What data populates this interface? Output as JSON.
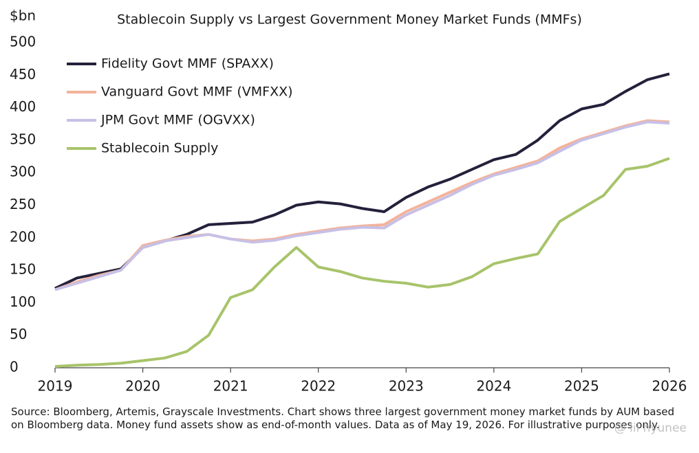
{
  "chart_data": {
    "type": "line",
    "title": "Stablecoin Supply vs Largest Government Money Market Funds (MMFs)",
    "y_label": "$bn",
    "x": [
      2019,
      2019.25,
      2019.5,
      2019.75,
      2020,
      2020.25,
      2020.5,
      2020.75,
      2021,
      2021.25,
      2021.5,
      2021.75,
      2022,
      2022.25,
      2022.5,
      2022.75,
      2023,
      2023.25,
      2023.5,
      2023.75,
      2024,
      2024.25,
      2024.5,
      2024.75,
      2025,
      2025.25,
      2025.5,
      2025.75,
      2026
    ],
    "series": [
      {
        "name": "Fidelity Govt MMF (SPAXX)",
        "color": "#23213a",
        "values": [
          122,
          138,
          145,
          152,
          185,
          195,
          205,
          220,
          222,
          224,
          235,
          250,
          255,
          252,
          245,
          240,
          262,
          278,
          290,
          305,
          320,
          328,
          350,
          380,
          398,
          405,
          425,
          443,
          452
        ]
      },
      {
        "name": "Vanguard Govt MMF (VMFXX)",
        "color": "#f4b39a",
        "values": [
          120,
          132,
          142,
          150,
          188,
          196,
          202,
          205,
          198,
          195,
          198,
          205,
          210,
          215,
          218,
          220,
          240,
          255,
          270,
          285,
          298,
          308,
          318,
          338,
          352,
          362,
          372,
          380,
          378
        ]
      },
      {
        "name": "JPM Govt MMF (OGVXX)",
        "color": "#c7c0e6",
        "values": [
          120,
          130,
          140,
          150,
          185,
          195,
          200,
          205,
          198,
          193,
          196,
          203,
          208,
          213,
          216,
          215,
          235,
          250,
          265,
          282,
          296,
          305,
          315,
          333,
          350,
          360,
          370,
          378,
          376
        ]
      },
      {
        "name": "Stablecoin Supply",
        "color": "#a7c46a",
        "values": [
          2,
          4,
          5,
          7,
          11,
          15,
          25,
          50,
          108,
          120,
          155,
          185,
          155,
          148,
          138,
          133,
          130,
          124,
          128,
          140,
          160,
          168,
          175,
          225,
          245,
          265,
          305,
          310,
          322
        ]
      }
    ],
    "xlim": [
      2019,
      2026
    ],
    "xticks": [
      2019,
      2020,
      2021,
      2022,
      2023,
      2024,
      2025,
      2026
    ],
    "ylim": [
      0,
      500
    ],
    "yticks": [
      0,
      50,
      100,
      150,
      200,
      250,
      300,
      350,
      400,
      450,
      500
    ],
    "legend": "top-left",
    "footnote": "Source: Bloomberg, Artemis, Grayscale Investments. Chart shows three largest government money market funds by AUM based on Bloomberg data. Money fund assets show as end-of-month values. Data as of May 19, 2026. For illustrative purposes only.",
    "watermark": "@ lil hyunee"
  }
}
